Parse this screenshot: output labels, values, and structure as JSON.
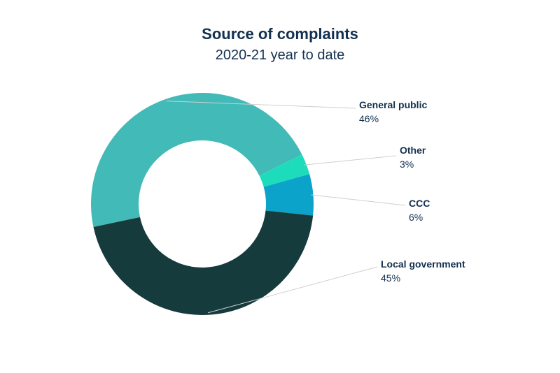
{
  "chart_data": {
    "type": "pie",
    "title": "Source of complaints",
    "subtitle": "2020-21 year to date",
    "slices": [
      {
        "label": "General public",
        "value_label": "46%",
        "value": 46,
        "color": "#42bab7"
      },
      {
        "label": "Other",
        "value_label": "3%",
        "value": 3,
        "color": "#1ddcbc"
      },
      {
        "label": "CCC",
        "value_label": "6%",
        "value": 6,
        "color": "#0ba3c9"
      },
      {
        "label": "Local government",
        "value_label": "45%",
        "value": 45,
        "color": "#163b3c"
      }
    ]
  }
}
